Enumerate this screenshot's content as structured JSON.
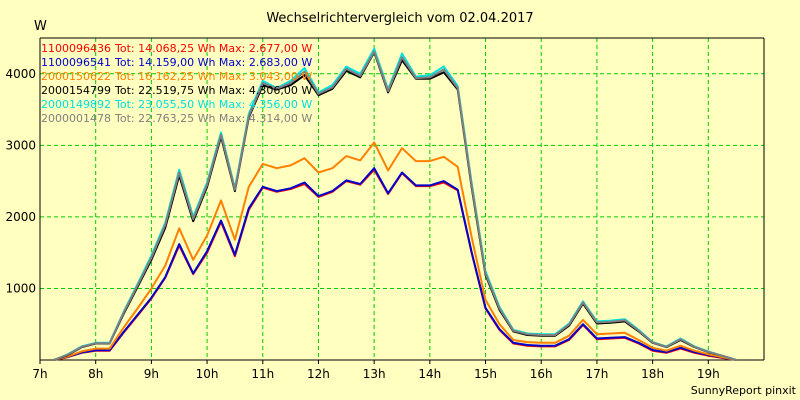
{
  "chart_data": {
    "type": "line",
    "title": "Wechselrichtervergleich vom 02.04.2017",
    "ylabel": "W",
    "xlabel": "",
    "footer": "SunnyReport pinxit",
    "ylim": [
      0,
      4500
    ],
    "xlim": [
      7,
      20
    ],
    "grid": true,
    "legend_position": "top-left",
    "y_ticks": [
      {
        "value": 1000,
        "label": "1000"
      },
      {
        "value": 2000,
        "label": "2000"
      },
      {
        "value": 3000,
        "label": "3000"
      },
      {
        "value": 4000,
        "label": "4000"
      }
    ],
    "x_ticks": [
      {
        "value": 7,
        "label": "7h"
      },
      {
        "value": 8,
        "label": "8h"
      },
      {
        "value": 9,
        "label": "9h"
      },
      {
        "value": 10,
        "label": "10h"
      },
      {
        "value": 11,
        "label": "11h"
      },
      {
        "value": 12,
        "label": "12h"
      },
      {
        "value": 13,
        "label": "13h"
      },
      {
        "value": 14,
        "label": "14h"
      },
      {
        "value": 15,
        "label": "15h"
      },
      {
        "value": 16,
        "label": "16h"
      },
      {
        "value": 17,
        "label": "17h"
      },
      {
        "value": 18,
        "label": "18h"
      },
      {
        "value": 19,
        "label": "19h"
      }
    ],
    "x": [
      7.25,
      7.5,
      7.75,
      8.0,
      8.25,
      8.5,
      8.75,
      9.0,
      9.25,
      9.5,
      9.75,
      10.0,
      10.25,
      10.5,
      10.75,
      11.0,
      11.25,
      11.5,
      11.75,
      12.0,
      12.25,
      12.5,
      12.75,
      13.0,
      13.25,
      13.5,
      13.75,
      14.0,
      14.25,
      14.5,
      14.75,
      15.0,
      15.25,
      15.5,
      15.75,
      16.0,
      16.25,
      16.5,
      16.75,
      17.0,
      17.25,
      17.5,
      17.75,
      18.0,
      18.25,
      18.5,
      18.75,
      19.0,
      19.25,
      19.5
    ],
    "series": [
      {
        "name": "1100096436",
        "legend": "Tot: 14.068,25 Wh Max: 2.677,00 W",
        "color": "#ff0000",
        "values": [
          0,
          40,
          100,
          130,
          130,
          380,
          620,
          860,
          1150,
          1600,
          1200,
          1500,
          1930,
          1450,
          2100,
          2410,
          2350,
          2390,
          2460,
          2280,
          2350,
          2500,
          2450,
          2660,
          2320,
          2610,
          2430,
          2430,
          2480,
          2370,
          1500,
          720,
          420,
          230,
          200,
          190,
          190,
          280,
          490,
          290,
          300,
          310,
          230,
          130,
          100,
          160,
          100,
          60,
          30,
          0
        ]
      },
      {
        "name": "1100096541",
        "legend": "Tot: 14.159,00 Wh Max: 2.683,00 W",
        "color": "#0000cc",
        "values": [
          0,
          45,
          105,
          135,
          135,
          390,
          630,
          870,
          1160,
          1620,
          1210,
          1520,
          1950,
          1470,
          2120,
          2420,
          2360,
          2400,
          2480,
          2290,
          2360,
          2510,
          2460,
          2680,
          2330,
          2620,
          2440,
          2440,
          2500,
          2380,
          1510,
          730,
          430,
          240,
          210,
          200,
          200,
          290,
          500,
          300,
          310,
          320,
          240,
          140,
          110,
          170,
          110,
          70,
          35,
          0
        ]
      },
      {
        "name": "2000150622",
        "legend": "Tot: 16.162,25 Wh Max: 3.043,00 W",
        "color": "#ff8000",
        "values": [
          0,
          50,
          120,
          160,
          160,
          450,
          720,
          1000,
          1320,
          1840,
          1400,
          1740,
          2230,
          1680,
          2420,
          2740,
          2680,
          2720,
          2820,
          2620,
          2680,
          2850,
          2790,
          3040,
          2650,
          2960,
          2780,
          2780,
          2840,
          2700,
          1720,
          840,
          500,
          280,
          250,
          240,
          240,
          340,
          560,
          360,
          370,
          380,
          280,
          170,
          130,
          200,
          130,
          80,
          40,
          0
        ]
      },
      {
        "name": "2000154799",
        "legend": "Tot: 22.519,75 Wh Max: 4.306,00 W",
        "color": "#000000",
        "values": [
          0,
          70,
          180,
          230,
          230,
          640,
          1020,
          1400,
          1850,
          2580,
          1940,
          2420,
          3120,
          2360,
          3390,
          3840,
          3780,
          3840,
          3980,
          3700,
          3790,
          4040,
          3950,
          4300,
          3740,
          4190,
          3930,
          3930,
          4020,
          3780,
          2420,
          1190,
          700,
          400,
          350,
          340,
          340,
          480,
          790,
          510,
          520,
          540,
          400,
          240,
          180,
          280,
          180,
          110,
          60,
          0
        ]
      },
      {
        "name": "2000149892",
        "legend": "Tot: 23.055,50 Wh Max: 4.356,00 W",
        "color": "#00e0e0",
        "values": [
          0,
          80,
          190,
          240,
          240,
          670,
          1060,
          1460,
          1920,
          2660,
          2000,
          2480,
          3180,
          2400,
          3440,
          3900,
          3800,
          3900,
          4080,
          3740,
          3840,
          4100,
          4000,
          4350,
          3780,
          4280,
          3960,
          3980,
          4100,
          3830,
          2480,
          1240,
          740,
          420,
          370,
          360,
          360,
          510,
          820,
          540,
          550,
          570,
          420,
          250,
          190,
          300,
          190,
          120,
          60,
          0
        ]
      },
      {
        "name": "2000001478",
        "legend": "Tot: 22.763,25 Wh Max: 4.314,00 W",
        "color": "#808080",
        "values": [
          0,
          75,
          185,
          235,
          235,
          655,
          1040,
          1430,
          1890,
          2620,
          1970,
          2450,
          3150,
          2380,
          3410,
          3870,
          3790,
          3870,
          4030,
          3720,
          3810,
          4070,
          3970,
          4310,
          3760,
          4230,
          3940,
          3950,
          4060,
          3800,
          2450,
          1210,
          720,
          410,
          360,
          350,
          350,
          495,
          805,
          525,
          535,
          555,
          410,
          245,
          185,
          290,
          185,
          115,
          60,
          0
        ]
      }
    ]
  }
}
